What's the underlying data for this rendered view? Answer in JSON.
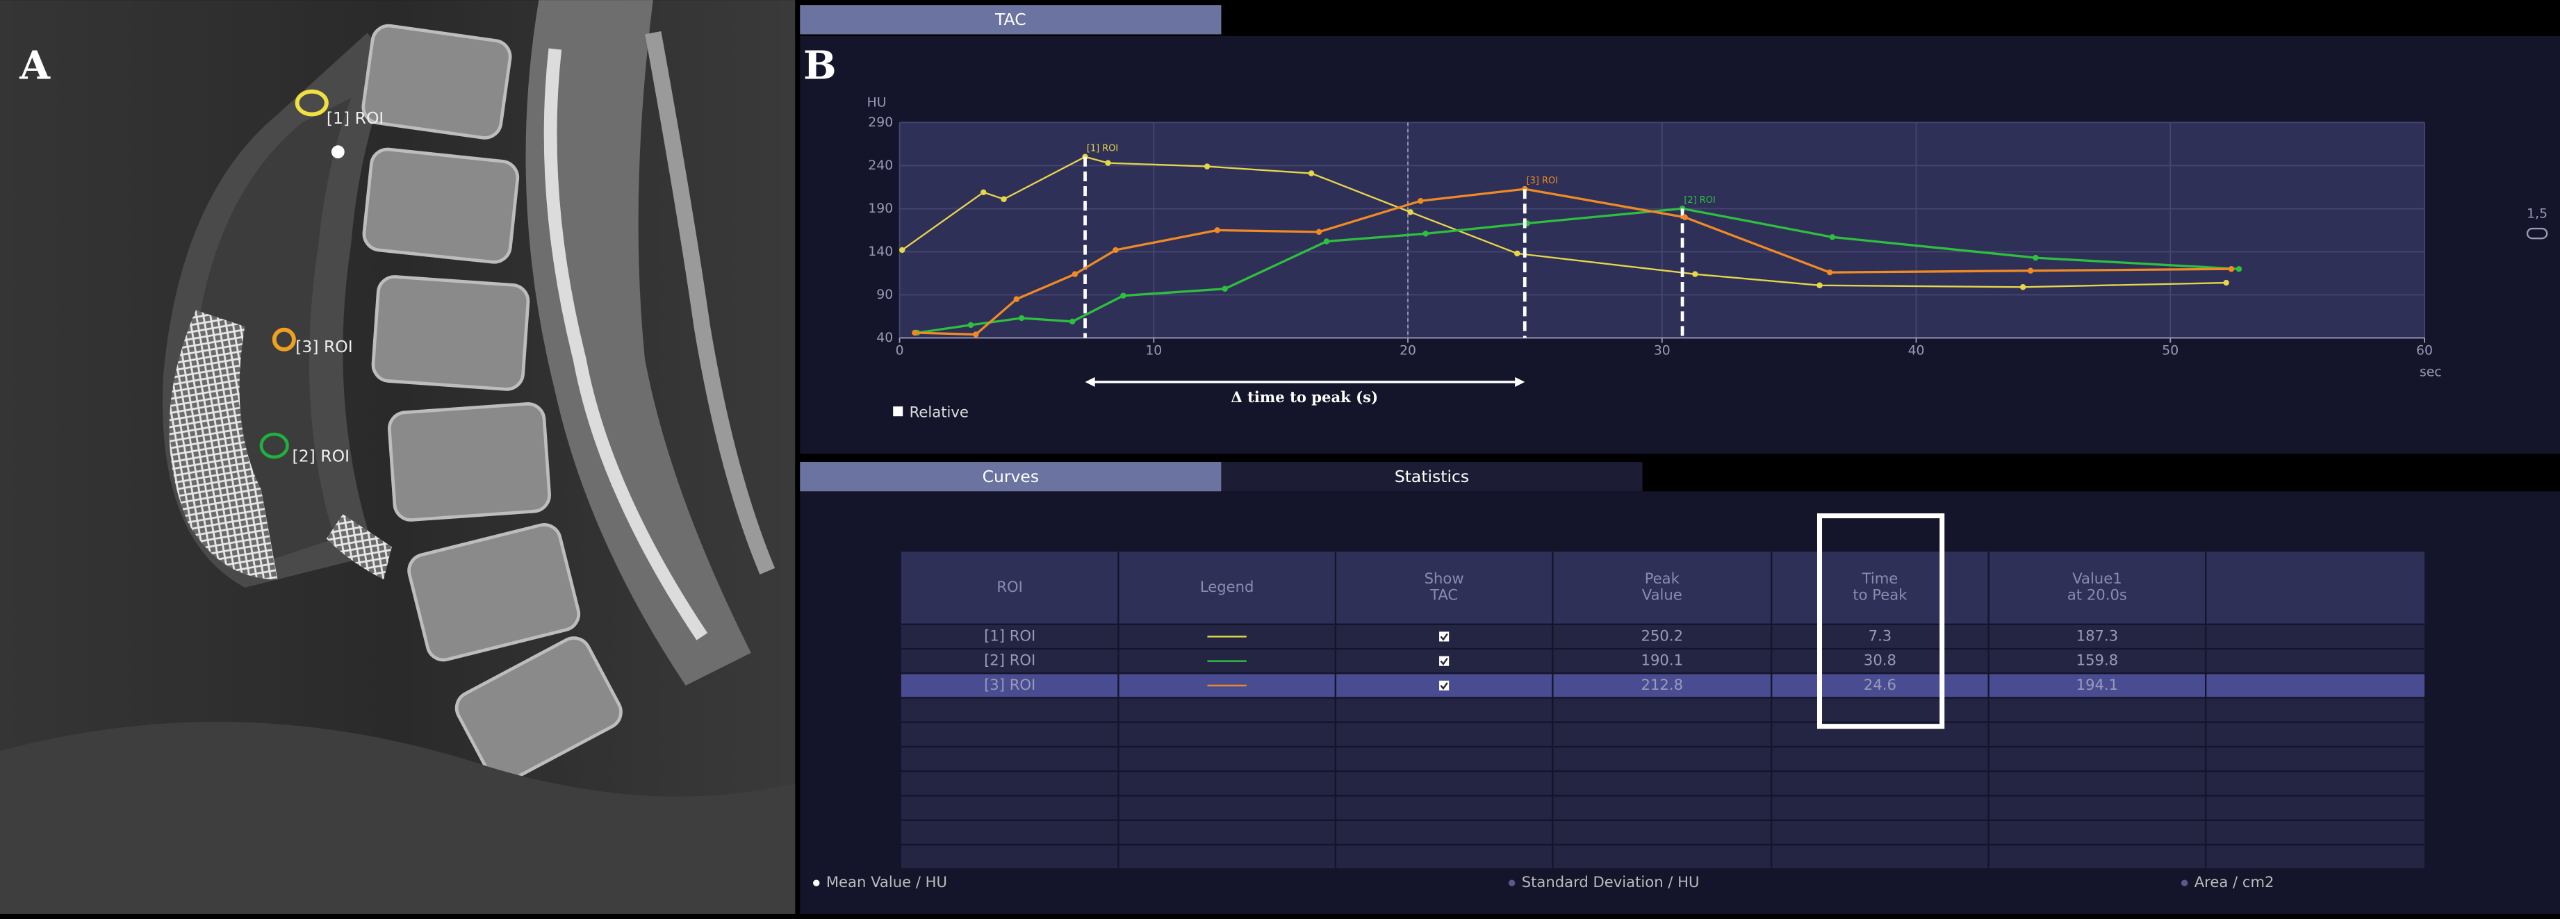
{
  "panel_labels": {
    "a": "A",
    "b": "B"
  },
  "image_labels": [
    "[1] ROI",
    "[3] ROI",
    "[2] ROI"
  ],
  "tabs": {
    "tac": "TAC",
    "curves": "Curves",
    "statistics": "Statistics"
  },
  "chart_data": {
    "type": "line",
    "ylabel": "HU",
    "xlabel": "sec",
    "xlim": [
      0,
      60
    ],
    "xticks": [
      0,
      10,
      20,
      30,
      40,
      50,
      60
    ],
    "ylim": [
      40,
      290
    ],
    "yticks": [
      40,
      90,
      140,
      190,
      240,
      290
    ],
    "grid": true,
    "reference_x": 20,
    "annotation": "Δ time to peak (s)",
    "option_label": "Relative",
    "side_label": "1,5",
    "series": [
      {
        "name": "[1] ROI",
        "color": "#e6d64a",
        "x": [
          0.1,
          3.3,
          4.1,
          7.3,
          8.2,
          12.1,
          16.2,
          20.1,
          24.3,
          31.3,
          36.2,
          44.2,
          52.2
        ],
        "values": [
          142,
          209,
          201,
          250.2,
          243,
          239,
          231,
          186,
          138,
          114,
          101,
          99,
          104
        ]
      },
      {
        "name": "[2] ROI",
        "color": "#2fbf3f",
        "x": [
          0.7,
          2.8,
          4.8,
          6.8,
          8.8,
          12.8,
          16.8,
          20.7,
          24.7,
          30.8,
          36.7,
          44.7,
          52.7
        ],
        "values": [
          46,
          55,
          63,
          59,
          89,
          97,
          152,
          161,
          173,
          190.1,
          157,
          133,
          120
        ]
      },
      {
        "name": "[3] ROI",
        "color": "#f08a24",
        "x": [
          0.6,
          3.0,
          4.6,
          6.9,
          8.5,
          12.5,
          16.5,
          20.5,
          24.6,
          30.9,
          36.6,
          44.5,
          52.4
        ],
        "values": [
          46,
          44,
          85,
          114,
          142,
          165,
          163,
          199,
          212.8,
          180,
          116,
          118,
          120
        ]
      }
    ]
  },
  "table": {
    "header": [
      [
        "ROI"
      ],
      [
        "Legend"
      ],
      [
        "Show",
        "TAC"
      ],
      [
        "Peak",
        "Value"
      ],
      [
        "Time",
        "to Peak"
      ],
      [
        "Value1",
        "at 20.0s"
      ]
    ],
    "rows": [
      {
        "roi": "[1] ROI",
        "show_tac": true,
        "peak_value": 250.2,
        "time_to_peak": 7.3,
        "value_at_20": 187.3
      },
      {
        "roi": "[2] ROI",
        "show_tac": true,
        "peak_value": 190.1,
        "time_to_peak": 30.8,
        "value_at_20": 159.8
      },
      {
        "roi": "[3] ROI",
        "show_tac": true,
        "peak_value": 212.8,
        "time_to_peak": 24.6,
        "value_at_20": 194.1
      }
    ],
    "selected_row": 2,
    "highlighted_column": 4
  },
  "footer": [
    "Mean Value / HU",
    "Standard Deviation / HU",
    "Area / cm2"
  ]
}
